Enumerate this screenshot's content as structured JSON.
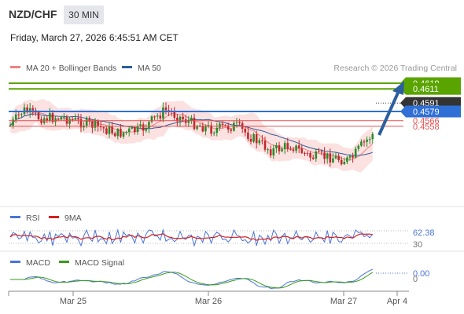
{
  "header": {
    "pair": "NZD/CHF",
    "timeframe": "30 MIN",
    "datetime": "Friday, March 27, 2026 6:45:51 AM CET"
  },
  "legend": {
    "ma20_label": "MA 20 + Bollinger Bands",
    "ma50_label": "MA 50",
    "ma20_color": "#f08080",
    "ma50_color": "#2c5c9c"
  },
  "copyright": "Research © 2026 Trading Central",
  "colors": {
    "resistance": "#5aa400",
    "support": "#2f6fd6",
    "minor_level": "#e05050",
    "arrow": "#2c5f9e",
    "bull": "#2b8a2b",
    "bear": "#c0282b",
    "bollinger_fill": "#fcdcdc"
  },
  "chart_data": {
    "type": "candlestick",
    "price_levels": [
      {
        "label": "0.4619",
        "kind": "resistance"
      },
      {
        "label": "0.4611",
        "kind": "resistance"
      },
      {
        "label": "0.4591",
        "kind": "current"
      },
      {
        "label": "0.4579",
        "kind": "support"
      },
      {
        "label": "0.4566",
        "kind": "minor"
      },
      {
        "label": "0.4558",
        "kind": "minor"
      }
    ],
    "ylim": [
      0.4555,
      0.4625
    ],
    "x_labels": [
      "Mar 25",
      "Mar 26",
      "Mar 27",
      "Apr 4"
    ],
    "rsi": {
      "legend": [
        "RSI",
        "9MA"
      ],
      "value_label": "62.38",
      "level_label": "30",
      "colors": [
        "#4a74d8",
        "#d42020"
      ]
    },
    "macd": {
      "legend": [
        "MACD",
        "MACD Signal"
      ],
      "value_label": "0.00",
      "zero_label": "0",
      "colors": [
        "#4a74d8",
        "#3a9a1a"
      ]
    }
  }
}
